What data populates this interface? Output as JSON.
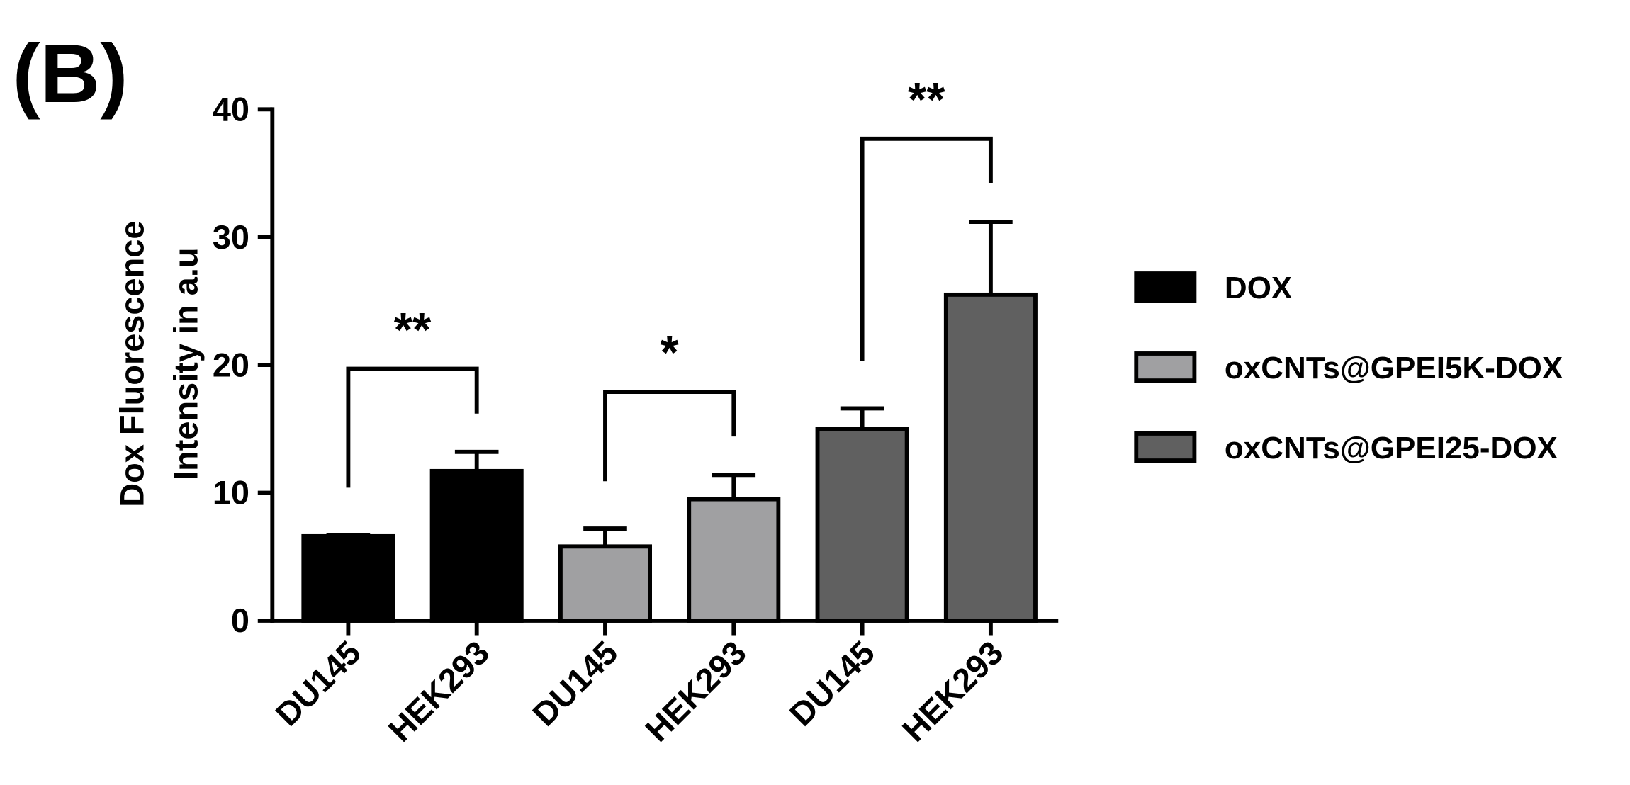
{
  "panel_label": "(B)",
  "chart_data": {
    "type": "bar",
    "y_label": [
      "Dox Fluorescence",
      "Intensity in a.u"
    ],
    "categories": [
      "DU145",
      "HEK293",
      "DU145",
      "HEK293",
      "DU145",
      "HEK293"
    ],
    "series": [
      {
        "name": "DOX",
        "color": "#000000",
        "values": [
          6.6,
          11.7,
          null,
          null,
          null,
          null
        ],
        "errors": [
          0.1,
          1.5,
          null,
          null,
          null,
          null
        ]
      },
      {
        "name": "oxCNTs@GPEI5K-DOX",
        "color": "#a0a0a2",
        "values": [
          null,
          null,
          5.8,
          9.5,
          null,
          null
        ],
        "errors": [
          null,
          null,
          1.4,
          1.9,
          null,
          null
        ]
      },
      {
        "name": "oxCNTs@GPEI25-DOX",
        "color": "#606060",
        "values": [
          null,
          null,
          null,
          null,
          15,
          25.5
        ],
        "errors": [
          null,
          null,
          null,
          null,
          1.6,
          5.7
        ]
      }
    ],
    "significance": [
      {
        "label": "**",
        "from": 0,
        "to": 1
      },
      {
        "label": "*",
        "from": 2,
        "to": 3
      },
      {
        "label": "**",
        "from": 4,
        "to": 5
      }
    ],
    "ylim": [
      0,
      40
    ],
    "yticks": [
      0,
      10,
      20,
      30,
      40
    ],
    "legend": "right"
  }
}
